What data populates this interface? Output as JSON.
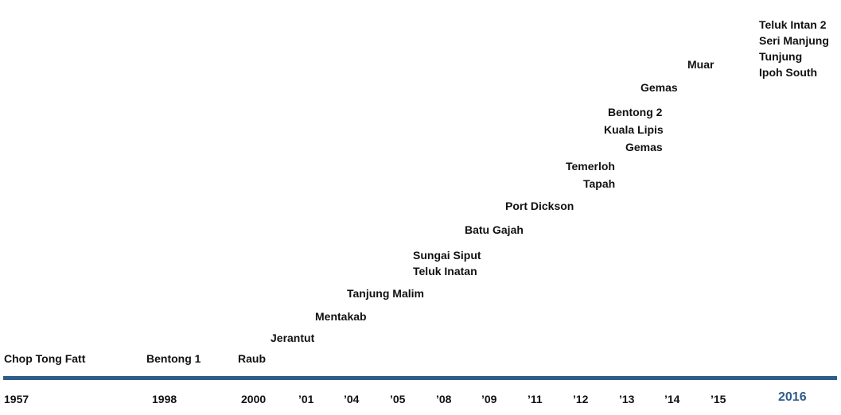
{
  "timeline": {
    "years": [
      "1957",
      "1998",
      "2000",
      "’01",
      "’04",
      "’05",
      "’08",
      "’09",
      "’11",
      "’12",
      "’13",
      "’14",
      "’15",
      "2016"
    ],
    "accent_color": "#2f5d8a",
    "events": [
      {
        "label": "Chop Tong Fatt"
      },
      {
        "label": "Bentong 1"
      },
      {
        "label": "Raub"
      },
      {
        "label": "Jerantut"
      },
      {
        "label": "Mentakab"
      },
      {
        "label": "Tanjung Malim"
      },
      {
        "label": "Sungai Siput"
      },
      {
        "label": "Teluk Inatan"
      },
      {
        "label": "Batu Gajah"
      },
      {
        "label": "Port Dickson"
      },
      {
        "label": "Tapah"
      },
      {
        "label": "Temerloh"
      },
      {
        "label": "Gemas"
      },
      {
        "label": "Kuala Lipis"
      },
      {
        "label": "Bentong 2"
      },
      {
        "label": "Gemas"
      },
      {
        "label": "Muar"
      },
      {
        "label": "Ipoh South"
      },
      {
        "label": "Tunjung"
      },
      {
        "label": "Seri Manjung"
      },
      {
        "label": "Teluk Intan 2"
      }
    ]
  }
}
